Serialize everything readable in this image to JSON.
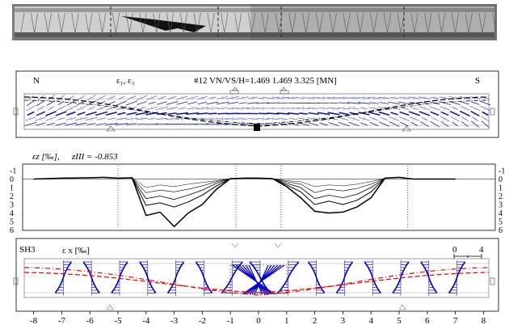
{
  "photo": {
    "description_hidden": ""
  },
  "panel1": {
    "left_label": "N",
    "right_label": "S",
    "strain_label": "ε₁, ε₃",
    "title": "#12 VN/VS/H=1.469 1.469 3.325 [MN]"
  },
  "panel2": {
    "label": "ε_z [‰], z_III = -0.853",
    "label_main": "εz [‰],",
    "label_z": "zIII = -0.853",
    "yticks": [
      "-1",
      "0",
      "1",
      "2",
      "3",
      "4",
      "5",
      "6"
    ],
    "chart_data": {
      "type": "line",
      "x": [
        -8.0,
        -7.0,
        -6.0,
        -5.5,
        -5.0,
        -4.5,
        -4.0,
        -3.5,
        -3.0,
        -2.5,
        -2.0,
        -1.5,
        -1.0,
        -0.5,
        0.0,
        0.5,
        1.0,
        1.5,
        2.0,
        2.5,
        3.0,
        3.5,
        4.0,
        4.5,
        5.0,
        5.5,
        6.0,
        7.0
      ],
      "series": [
        {
          "values": [
            0,
            -0.1,
            -0.15,
            -0.2,
            -0.1,
            -0.15,
            1.0,
            0.7,
            0.9,
            0.6,
            0.4,
            0.2,
            -0.05,
            -0.1,
            -0.1,
            -0.05,
            0.2,
            0.3,
            0.9,
            0.7,
            0.8,
            0.6,
            0.3,
            -0.1,
            -0.2,
            0,
            0,
            0
          ]
        },
        {
          "values": [
            0,
            -0.1,
            -0.15,
            -0.2,
            -0.1,
            -0.15,
            1.6,
            1.3,
            1.5,
            1.2,
            0.8,
            0.3,
            -0.05,
            -0.1,
            -0.1,
            -0.05,
            0.3,
            0.6,
            1.6,
            1.2,
            1.4,
            1.1,
            0.6,
            -0.1,
            -0.2,
            0,
            0,
            0
          ]
        },
        {
          "values": [
            0,
            -0.1,
            -0.15,
            -0.2,
            -0.1,
            -0.15,
            2.3,
            2.0,
            2.4,
            1.9,
            1.3,
            0.5,
            -0.05,
            -0.1,
            -0.1,
            -0.05,
            0.5,
            1.0,
            2.3,
            1.9,
            2.2,
            1.8,
            1.0,
            -0.1,
            -0.2,
            0,
            0,
            0
          ]
        },
        {
          "values": [
            0,
            -0.1,
            -0.15,
            -0.2,
            -0.1,
            -0.15,
            3.1,
            2.8,
            3.3,
            2.7,
            1.9,
            0.8,
            -0.05,
            -0.1,
            -0.1,
            -0.05,
            0.7,
            1.5,
            3.0,
            2.6,
            3.0,
            2.5,
            1.5,
            -0.1,
            -0.2,
            0,
            0,
            0
          ]
        },
        {
          "values": [
            0,
            -0.1,
            -0.15,
            -0.2,
            -0.1,
            -0.15,
            4.3,
            3.9,
            5.6,
            4.0,
            3.0,
            1.2,
            -0.05,
            -0.1,
            -0.1,
            -0.05,
            0.9,
            2.2,
            3.8,
            4.0,
            3.9,
            3.3,
            2.2,
            -0.1,
            -0.2,
            0,
            0,
            0
          ]
        }
      ],
      "ylim": [
        -1,
        6
      ]
    }
  },
  "panel3": {
    "left_label": "SH3",
    "strain_label": "ε x  [‰]",
    "scale_label_left": "0",
    "scale_label_right": "4"
  },
  "xaxis": {
    "ticks": [
      "-8",
      "-7",
      "-6",
      "-5",
      "-4",
      "-3",
      "-2",
      "-1",
      "0",
      "1",
      "2",
      "3",
      "4",
      "5",
      "6",
      "7",
      "8"
    ]
  }
}
